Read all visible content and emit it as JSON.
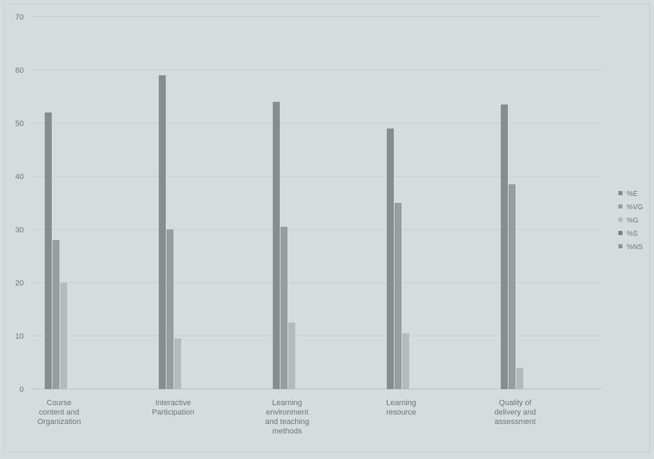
{
  "chart_data": {
    "type": "bar",
    "title": "",
    "xlabel": "",
    "ylabel": "",
    "ylim": [
      0,
      70
    ],
    "yticks": [
      0,
      10,
      20,
      30,
      40,
      50,
      60,
      70
    ],
    "grid": true,
    "legend_position": "right",
    "categories": [
      [
        "Course",
        "content and",
        "Organization"
      ],
      [
        "Interactive",
        "Participation"
      ],
      [
        "Learning",
        "environment",
        "and teaching",
        "methods"
      ],
      [
        "Learning",
        "resource"
      ],
      [
        "Quality of",
        "delivery and",
        "assessment"
      ]
    ],
    "series": [
      {
        "name": "%E",
        "color": "#868d8e",
        "values": [
          52,
          59,
          54,
          49,
          53.5
        ]
      },
      {
        "name": "%VG",
        "color": "#979e9f",
        "values": [
          28,
          30,
          30.5,
          35,
          38.5
        ]
      },
      {
        "name": "%G",
        "color": "#b5bbbb",
        "values": [
          20,
          9.5,
          12.5,
          10.5,
          4
        ]
      },
      {
        "name": "%S",
        "color": "#7b8283",
        "values": [
          0,
          0,
          0,
          0,
          0
        ]
      },
      {
        "name": "%NS",
        "color": "#8e9596",
        "values": [
          0,
          0,
          0,
          0,
          0
        ]
      }
    ]
  }
}
